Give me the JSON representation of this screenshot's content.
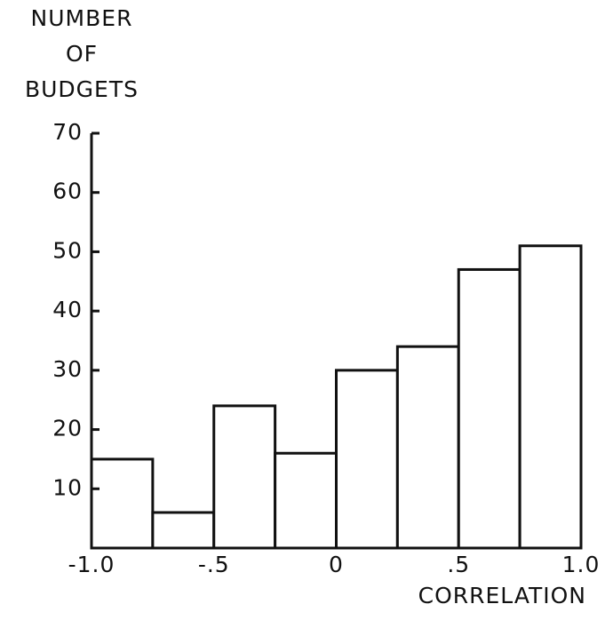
{
  "chart_data": {
    "type": "histogram",
    "ylabel": [
      "NUMBER",
      "OF",
      "BUDGETS"
    ],
    "xlabel": "CORRELATION",
    "bins": [
      -1.0,
      -0.75,
      -0.5,
      -0.25,
      0,
      0.25,
      0.5,
      0.75,
      1.0
    ],
    "values": [
      15,
      6,
      24,
      16,
      30,
      34,
      47,
      51
    ],
    "color": "#ffffff",
    "xlim": [
      -1.0,
      1.0
    ],
    "xticks": [
      {
        "value": -1.0,
        "label": "-1.0"
      },
      {
        "value": -0.5,
        "label": "-.5"
      },
      0,
      {
        "value": 0.5,
        "label": ".5"
      },
      {
        "value": 1.0,
        "label": "1.0"
      }
    ],
    "ylim": [
      0,
      70
    ],
    "yticks": [
      10,
      20,
      30,
      40,
      50,
      60,
      70
    ],
    "grid": false
  }
}
